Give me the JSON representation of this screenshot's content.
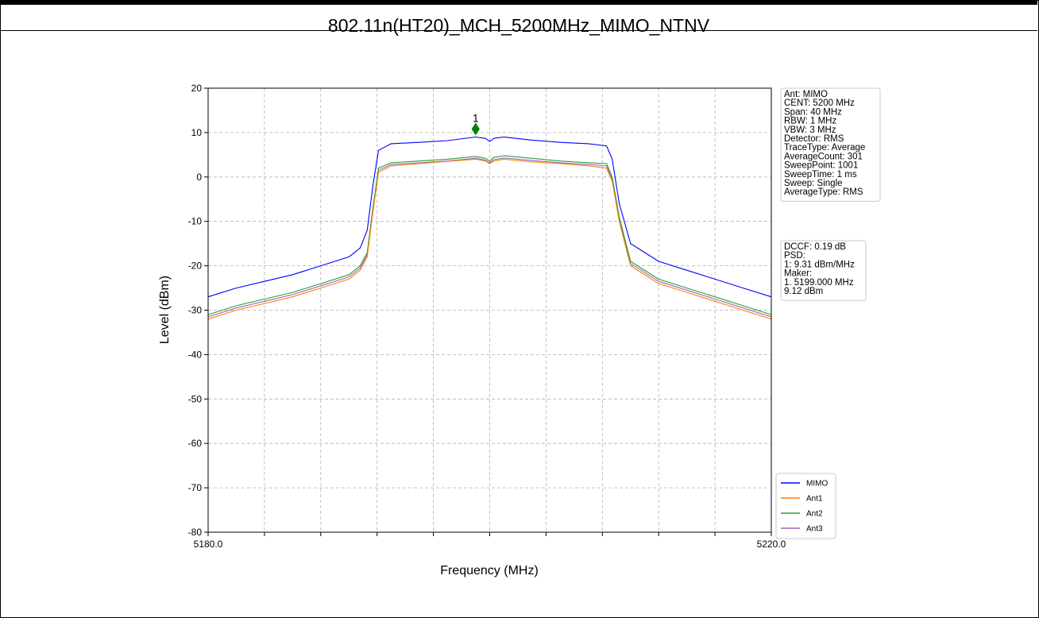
{
  "chart_data": {
    "type": "line",
    "title": "802.11n(HT20)_MCH_5200MHz_MIMO_NTNV",
    "xlabel": "Frequency (MHz)",
    "ylabel": "Level (dBm)",
    "xlim": [
      5180,
      5220
    ],
    "ylim": [
      -80,
      20
    ],
    "x_tick_labels": [
      "5180.0",
      "5220.0"
    ],
    "y_ticks": [
      20,
      10,
      0,
      -10,
      -20,
      -30,
      -40,
      -50,
      -60,
      -70,
      -80
    ],
    "grid": true,
    "legend_position": "bottom-right",
    "series": [
      {
        "name": "MIMO",
        "color": "#0000ff",
        "x": [
          5180,
          5182,
          5184,
          5186,
          5188,
          5190,
          5190.8,
          5191.3,
          5191.7,
          5192.1,
          5193,
          5195,
          5197,
          5199,
          5199.7,
          5200,
          5200.3,
          5201,
          5203,
          5205,
          5207,
          5208.3,
          5208.7,
          5209.2,
          5210,
          5212,
          5214,
          5216,
          5218,
          5220
        ],
        "y": [
          -27,
          -25,
          -23.5,
          -22,
          -20,
          -18,
          -16,
          -12,
          -2,
          6,
          7.5,
          7.8,
          8.2,
          9.0,
          8.7,
          8.0,
          8.7,
          9.0,
          8.3,
          7.8,
          7.5,
          7.0,
          4,
          -6,
          -15,
          -19,
          -21,
          -23,
          -25,
          -27
        ]
      },
      {
        "name": "Ant1",
        "color": "#ff7f0e",
        "x": [
          5180,
          5182,
          5184,
          5186,
          5188,
          5190,
          5190.8,
          5191.3,
          5191.7,
          5192.1,
          5193,
          5195,
          5197,
          5199,
          5199.7,
          5200,
          5200.3,
          5201,
          5203,
          5205,
          5207,
          5208.3,
          5208.7,
          5209.2,
          5210,
          5212,
          5214,
          5216,
          5218,
          5220
        ],
        "y": [
          -32,
          -30,
          -28.5,
          -27,
          -25,
          -23,
          -21,
          -18,
          -8,
          1,
          2.5,
          3,
          3.5,
          4.0,
          3.6,
          3.0,
          3.6,
          4.0,
          3.4,
          3.0,
          2.5,
          2.0,
          -1,
          -10,
          -20,
          -24,
          -26,
          -28,
          -30,
          -32
        ]
      },
      {
        "name": "Ant2",
        "color": "#2ca02c",
        "x": [
          5180,
          5182,
          5184,
          5186,
          5188,
          5190,
          5190.8,
          5191.3,
          5191.7,
          5192.1,
          5193,
          5195,
          5197,
          5199,
          5199.7,
          5200,
          5200.3,
          5201,
          5203,
          5205,
          5207,
          5208.3,
          5208.7,
          5209.2,
          5210,
          5212,
          5214,
          5216,
          5218,
          5220
        ],
        "y": [
          -31,
          -29,
          -27.5,
          -26,
          -24,
          -22,
          -20,
          -17,
          -7,
          2,
          3.2,
          3.6,
          4.0,
          4.6,
          4.2,
          3.6,
          4.4,
          4.8,
          4.2,
          3.6,
          3.2,
          3.0,
          0,
          -9,
          -19,
          -23,
          -25,
          -27,
          -29,
          -31
        ]
      },
      {
        "name": "Ant3",
        "color": "#9467bd",
        "x": [
          5180,
          5182,
          5184,
          5186,
          5188,
          5190,
          5190.8,
          5191.3,
          5191.7,
          5192.1,
          5193,
          5195,
          5197,
          5199,
          5199.7,
          5200,
          5200.3,
          5201,
          5203,
          5205,
          5207,
          5208.3,
          5208.7,
          5209.2,
          5210,
          5212,
          5214,
          5216,
          5218,
          5220
        ],
        "y": [
          -31.5,
          -29.5,
          -28,
          -26.5,
          -24.5,
          -22.5,
          -20.5,
          -17.5,
          -7.5,
          1.5,
          2.8,
          3.2,
          3.6,
          4.2,
          3.8,
          3.2,
          3.9,
          4.3,
          3.7,
          3.2,
          2.8,
          2.5,
          -0.5,
          -9.5,
          -19.5,
          -23.5,
          -25.5,
          -27.5,
          -29.5,
          -31.5
        ]
      }
    ],
    "marker": {
      "label": "1",
      "x": 5199.0,
      "y": 10.8,
      "color": "#008000"
    },
    "info_box": [
      "Ant: MIMO",
      "CENT: 5200 MHz",
      "Span: 40 MHz",
      "RBW: 1 MHz",
      "VBW: 3 MHz",
      "Detector: RMS",
      "TraceType: Average",
      "AverageCount: 301",
      "SweepPoint: 1001",
      "SweepTime: 1 ms",
      "Sweep: Single",
      "AverageType: RMS"
    ],
    "result_box": [
      "DCCF: 0.19 dB",
      "PSD:",
      "1: 9.31 dBm/MHz",
      "Maker:",
      "1. 5199.000 MHz",
      "    9.12 dBm"
    ]
  }
}
